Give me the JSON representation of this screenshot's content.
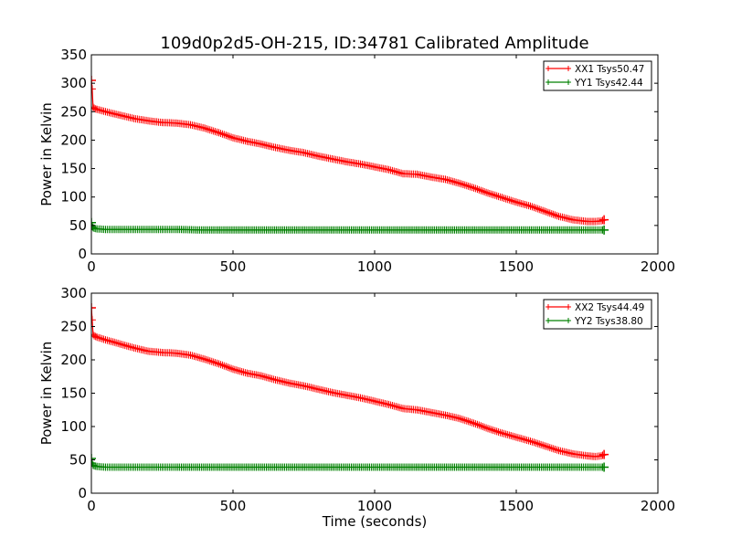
{
  "figure": {
    "title": "109d0p2d5-OH-215, ID:34781 Calibrated Amplitude"
  },
  "colors": {
    "xx": "#ff0000",
    "yy": "#008000",
    "axes": "#000000",
    "background": "#ffffff"
  },
  "chart_data": [
    {
      "type": "line",
      "title": "109d0p2d5-OH-215, ID:34781 Calibrated Amplitude",
      "xlabel": "",
      "ylabel": "Power in Kelvin",
      "xlim": [
        0,
        2000
      ],
      "ylim": [
        0,
        350
      ],
      "xticks": [
        0,
        500,
        1000,
        1500,
        2000
      ],
      "yticks": [
        0,
        50,
        100,
        150,
        200,
        250,
        300,
        350
      ],
      "xtick_labels": [
        "0",
        "500",
        "1000",
        "1500",
        "2000"
      ],
      "ytick_labels": [
        "0",
        "50",
        "100",
        "150",
        "200",
        "250",
        "300",
        "350"
      ],
      "grid": false,
      "legend_position": "top-right",
      "series": [
        {
          "name": "XX1 Tsys50.47",
          "color": "#ff0000",
          "marker": "+",
          "x": [
            0,
            3,
            6,
            10,
            20,
            50,
            100,
            150,
            200,
            250,
            300,
            350,
            400,
            450,
            500,
            550,
            600,
            650,
            700,
            750,
            800,
            850,
            900,
            950,
            1000,
            1050,
            1100,
            1150,
            1200,
            1250,
            1300,
            1350,
            1400,
            1450,
            1500,
            1550,
            1600,
            1650,
            1700,
            1750,
            1780,
            1800,
            1810
          ],
          "y": [
            305,
            290,
            258,
            256,
            254,
            250,
            244,
            238,
            234,
            231,
            230,
            227,
            221,
            213,
            204,
            198,
            193,
            187,
            182,
            178,
            172,
            167,
            162,
            158,
            153,
            148,
            141,
            140,
            135,
            131,
            124,
            116,
            107,
            99,
            91,
            84,
            75,
            66,
            60,
            57,
            57,
            58,
            60
          ]
        },
        {
          "name": "YY1 Tsys42.44",
          "color": "#008000",
          "marker": "+",
          "x": [
            0,
            3,
            6,
            10,
            20,
            50,
            100,
            150,
            200,
            250,
            300,
            400,
            500,
            600,
            700,
            800,
            900,
            1000,
            1100,
            1200,
            1300,
            1400,
            1500,
            1600,
            1700,
            1780,
            1800,
            1810
          ],
          "y": [
            55,
            48,
            46,
            45,
            44,
            43,
            43,
            43,
            43,
            43,
            43,
            42,
            42,
            42,
            42,
            42,
            42,
            42,
            42,
            42,
            42,
            42,
            42,
            42,
            42,
            42,
            42,
            42
          ]
        }
      ]
    },
    {
      "type": "line",
      "title": "",
      "xlabel": "Time (seconds)",
      "ylabel": "Power in Kelvin",
      "xlim": [
        0,
        2000
      ],
      "ylim": [
        0,
        300
      ],
      "xticks": [
        0,
        500,
        1000,
        1500,
        2000
      ],
      "yticks": [
        0,
        50,
        100,
        150,
        200,
        250,
        300
      ],
      "xtick_labels": [
        "0",
        "500",
        "1000",
        "1500",
        "2000"
      ],
      "ytick_labels": [
        "0",
        "50",
        "100",
        "150",
        "200",
        "250",
        "300"
      ],
      "grid": false,
      "legend_position": "top-right",
      "series": [
        {
          "name": "XX2 Tsys44.49",
          "color": "#ff0000",
          "marker": "+",
          "x": [
            0,
            3,
            6,
            10,
            20,
            50,
            100,
            150,
            200,
            250,
            300,
            350,
            400,
            450,
            500,
            550,
            600,
            650,
            700,
            750,
            800,
            850,
            900,
            950,
            1000,
            1050,
            1100,
            1150,
            1200,
            1250,
            1300,
            1350,
            1400,
            1450,
            1500,
            1550,
            1600,
            1650,
            1700,
            1750,
            1780,
            1800,
            1810
          ],
          "y": [
            278,
            260,
            238,
            236,
            234,
            230,
            224,
            218,
            213,
            211,
            210,
            207,
            201,
            194,
            186,
            180,
            176,
            170,
            165,
            161,
            156,
            151,
            147,
            143,
            138,
            133,
            127,
            125,
            121,
            117,
            112,
            105,
            97,
            90,
            84,
            78,
            71,
            64,
            59,
            56,
            55,
            56,
            58
          ]
        },
        {
          "name": "YY2 Tsys38.80",
          "color": "#008000",
          "marker": "+",
          "x": [
            0,
            3,
            6,
            10,
            20,
            50,
            100,
            150,
            200,
            250,
            300,
            400,
            500,
            600,
            700,
            800,
            900,
            1000,
            1100,
            1200,
            1300,
            1400,
            1500,
            1600,
            1700,
            1780,
            1800,
            1810
          ],
          "y": [
            52,
            45,
            42,
            41,
            40,
            39,
            39,
            39,
            39,
            39,
            39,
            39,
            39,
            39,
            39,
            39,
            39,
            39,
            39,
            39,
            39,
            39,
            39,
            39,
            39,
            39,
            39,
            39
          ]
        }
      ]
    }
  ]
}
